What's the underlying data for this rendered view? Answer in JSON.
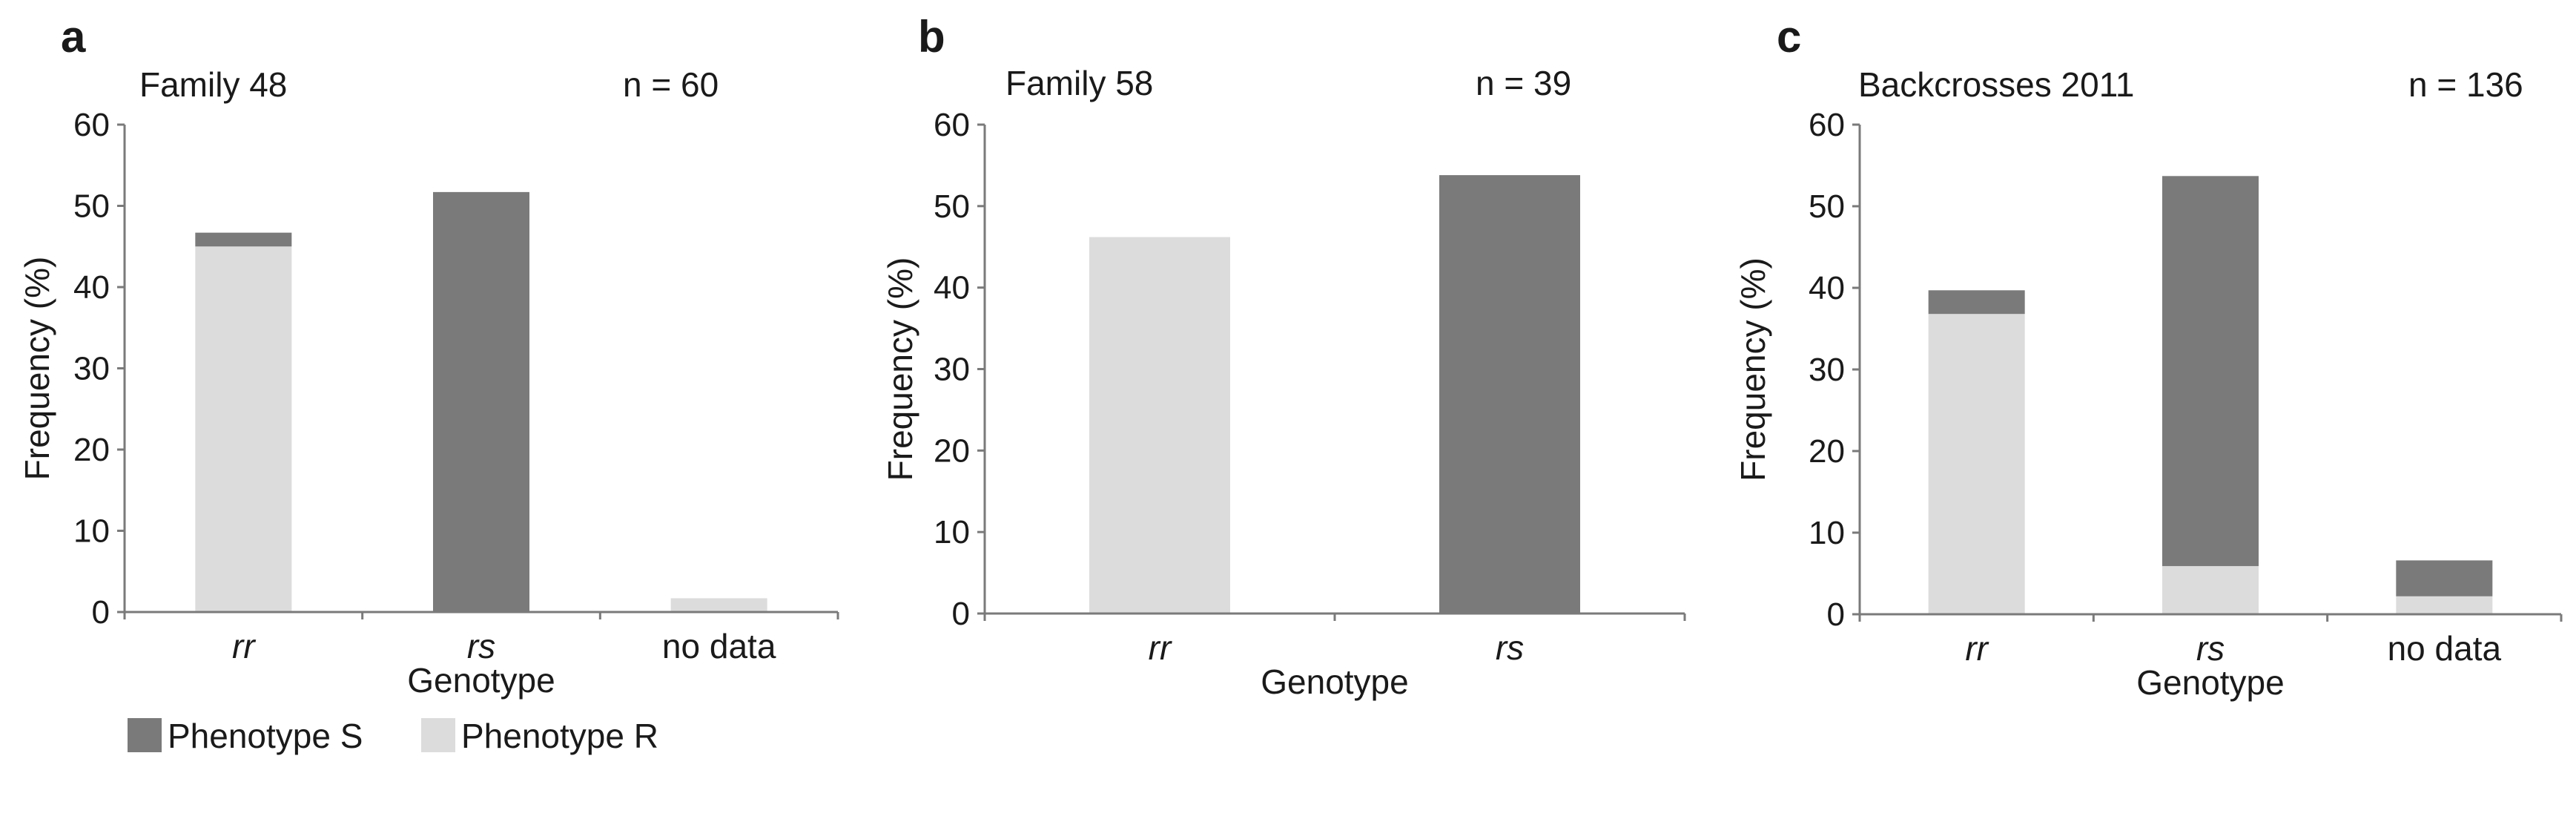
{
  "colors": {
    "phenotype_s": "#7a7a7a",
    "phenotype_r": "#dcdcdc",
    "axis": "#7a7a7a",
    "text": "#1a1a1a"
  },
  "legend": [
    {
      "label": "Phenotype S",
      "color": "#7a7a7a"
    },
    {
      "label": "Phenotype R",
      "color": "#dcdcdc"
    }
  ],
  "chart_data": [
    {
      "type": "bar",
      "stacked": true,
      "panel": "a",
      "title": "Family 48",
      "n_label": "n = 60",
      "xlabel": "Genotype",
      "ylabel": "Frequency (%)",
      "ylim": [
        0,
        60
      ],
      "yticks": [
        "0",
        "10",
        "20",
        "30",
        "40",
        "50",
        "60"
      ],
      "categories": [
        "rr",
        "rs",
        "no data"
      ],
      "italic_categories": [
        true,
        true,
        false
      ],
      "series": [
        {
          "name": "Phenotype R",
          "values": [
            45.0,
            0,
            1.7
          ]
        },
        {
          "name": "Phenotype S",
          "values": [
            1.7,
            51.7,
            0
          ]
        }
      ]
    },
    {
      "type": "bar",
      "stacked": true,
      "panel": "b",
      "title": "Family 58",
      "n_label": "n = 39",
      "xlabel": "Genotype",
      "ylabel": "Frequency (%)",
      "ylim": [
        0,
        60
      ],
      "yticks": [
        "0",
        "10",
        "20",
        "30",
        "40",
        "50",
        "60"
      ],
      "categories": [
        "rr",
        "rs"
      ],
      "italic_categories": [
        true,
        true
      ],
      "series": [
        {
          "name": "Phenotype R",
          "values": [
            46.2,
            0
          ]
        },
        {
          "name": "Phenotype S",
          "values": [
            0,
            53.8
          ]
        }
      ]
    },
    {
      "type": "bar",
      "stacked": true,
      "panel": "c",
      "title": "Backcrosses 2011",
      "n_label": "n = 136",
      "xlabel": "Genotype",
      "ylabel": "Frequency (%)",
      "ylim": [
        0,
        60
      ],
      "yticks": [
        "0",
        "10",
        "20",
        "30",
        "40",
        "50",
        "60"
      ],
      "categories": [
        "rr",
        "rs",
        "no data"
      ],
      "italic_categories": [
        true,
        true,
        false
      ],
      "series": [
        {
          "name": "Phenotype R",
          "values": [
            36.8,
            5.9,
            2.2
          ]
        },
        {
          "name": "Phenotype S",
          "values": [
            2.9,
            47.8,
            4.4
          ]
        }
      ]
    }
  ]
}
